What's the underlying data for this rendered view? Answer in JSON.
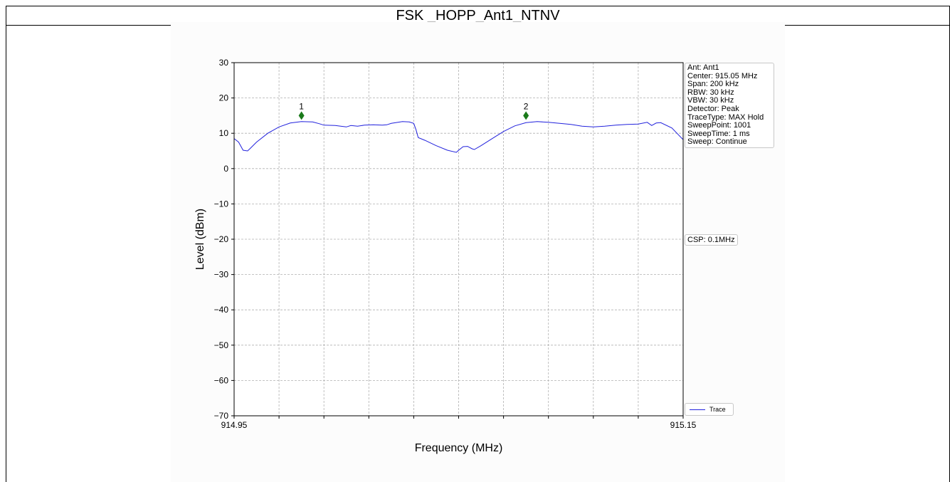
{
  "page_title": "FSK _HOPP_Ant1_NTNV",
  "info_lines": [
    "Ant: Ant1",
    "Center: 915.05 MHz",
    "Span: 200 kHz",
    "RBW: 30 kHz",
    "VBW: 30 kHz",
    "Detector: Peak",
    "TraceType: MAX Hold",
    "SweepPoint: 1001",
    "SweepTime: 1 ms",
    "Sweep: Continue"
  ],
  "csp_label": "CSP: 0.1MHz",
  "colors": {
    "trace": "#2222dd",
    "marker": "#1a7a1a",
    "grid": "#b0b0b0"
  },
  "chart_data": {
    "type": "line",
    "xlabel": "Frequency (MHz)",
    "ylabel": "Level (dBm)",
    "xlim": [
      914.95,
      915.15
    ],
    "ylim": [
      -70,
      30
    ],
    "x_tick_labels": [
      "914.95",
      "915.15"
    ],
    "y_ticks": [
      30,
      20,
      10,
      0,
      -10,
      -20,
      -30,
      -40,
      -50,
      -60,
      -70
    ],
    "grid": true,
    "legend": "bottom-right",
    "series": [
      {
        "name": "Trace",
        "points": [
          [
            914.95,
            8.5
          ],
          [
            914.952,
            7.5
          ],
          [
            914.954,
            5.2
          ],
          [
            914.956,
            5.0
          ],
          [
            914.957,
            5.6
          ],
          [
            914.96,
            7.5
          ],
          [
            914.965,
            10.0
          ],
          [
            914.97,
            11.8
          ],
          [
            914.975,
            12.9
          ],
          [
            914.98,
            13.3
          ],
          [
            914.985,
            13.2
          ],
          [
            914.988,
            12.7
          ],
          [
            914.99,
            12.3
          ],
          [
            914.995,
            12.2
          ],
          [
            915.0,
            11.8
          ],
          [
            915.002,
            12.2
          ],
          [
            915.005,
            12.0
          ],
          [
            915.008,
            12.3
          ],
          [
            915.012,
            12.4
          ],
          [
            915.016,
            12.3
          ],
          [
            915.018,
            12.4
          ],
          [
            915.02,
            12.8
          ],
          [
            915.025,
            13.3
          ],
          [
            915.028,
            13.2
          ],
          [
            915.03,
            12.8
          ],
          [
            915.031,
            11.0
          ],
          [
            915.032,
            8.8
          ],
          [
            915.035,
            8.0
          ],
          [
            915.04,
            6.5
          ],
          [
            915.045,
            5.2
          ],
          [
            915.049,
            4.6
          ],
          [
            915.05,
            5.2
          ],
          [
            915.052,
            6.2
          ],
          [
            915.054,
            6.3
          ],
          [
            915.056,
            5.6
          ],
          [
            915.057,
            5.4
          ],
          [
            915.06,
            6.5
          ],
          [
            915.065,
            8.5
          ],
          [
            915.07,
            10.5
          ],
          [
            915.075,
            12.1
          ],
          [
            915.08,
            13.0
          ],
          [
            915.085,
            13.3
          ],
          [
            915.09,
            13.1
          ],
          [
            915.095,
            12.8
          ],
          [
            915.1,
            12.5
          ],
          [
            915.105,
            12.0
          ],
          [
            915.11,
            11.8
          ],
          [
            915.115,
            12.0
          ],
          [
            915.12,
            12.3
          ],
          [
            915.125,
            12.5
          ],
          [
            915.13,
            12.6
          ],
          [
            915.134,
            13.1
          ],
          [
            915.136,
            12.2
          ],
          [
            915.138,
            12.9
          ],
          [
            915.14,
            13.0
          ],
          [
            915.145,
            11.5
          ],
          [
            915.148,
            9.5
          ],
          [
            915.15,
            8.2
          ]
        ]
      }
    ],
    "markers": [
      {
        "label": "1",
        "x": 914.98,
        "y": 15.0
      },
      {
        "label": "2",
        "x": 915.08,
        "y": 15.0
      }
    ]
  }
}
